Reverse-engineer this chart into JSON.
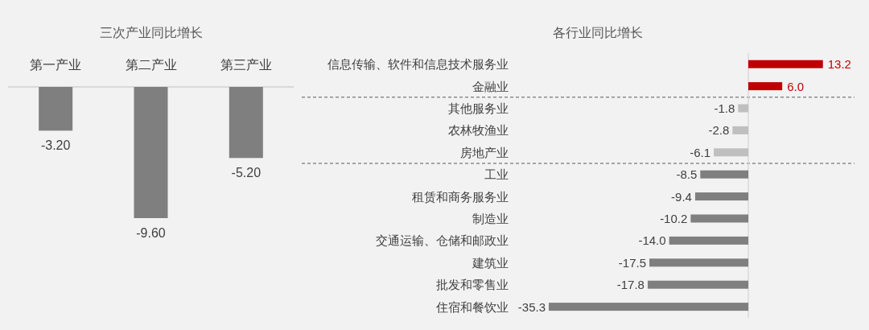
{
  "chart_data": [
    {
      "type": "bar",
      "title": "三次产业同比增长",
      "categories": [
        "第一产业",
        "第二产业",
        "第三产业"
      ],
      "values": [
        -3.2,
        -9.6,
        -5.2
      ],
      "value_labels": [
        "-3.20",
        "-9.60",
        "-5.20"
      ],
      "color": "#7f7f7f"
    },
    {
      "type": "bar",
      "orientation": "horizontal",
      "title": "各行业同比增长",
      "categories": [
        "信息传输、软件和信息技术服务业",
        "金融业",
        "其他服务业",
        "农林牧渔业",
        "房地产业",
        "工业",
        "租赁和商务服务业",
        "制造业",
        "交通运输、仓储和邮政业",
        "建筑业",
        "批发和零售业",
        "住宿和餐饮业"
      ],
      "values": [
        13.2,
        6.0,
        -1.8,
        -2.8,
        -6.1,
        -8.5,
        -9.4,
        -10.2,
        -14.0,
        -17.5,
        -17.8,
        -35.3
      ],
      "value_labels": [
        "13.2",
        "6.0",
        "-1.8",
        "-2.8",
        "-6.1",
        "-8.5",
        "-9.4",
        "-10.2",
        "-14.0",
        "-17.5",
        "-17.8",
        "-35.3"
      ],
      "colors": [
        "#c00000",
        "#c00000",
        "#bfbfbf",
        "#bfbfbf",
        "#bfbfbf",
        "#7f7f7f",
        "#7f7f7f",
        "#7f7f7f",
        "#7f7f7f",
        "#7f7f7f",
        "#7f7f7f",
        "#7f7f7f"
      ]
    }
  ]
}
